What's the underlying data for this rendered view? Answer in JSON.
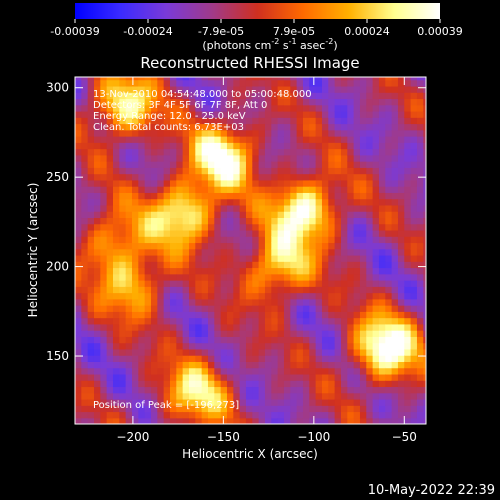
{
  "colorbar": {
    "tick_labels": [
      "-0.00039",
      "-0.00024",
      "-7.9e-05",
      "7.9e-05",
      "0.00024",
      "0.00039"
    ],
    "unit_label": "(photons cm",
    "unit_exp1": "-2",
    "unit_mid": " s",
    "unit_exp2": "-1",
    "unit_mid2": " asec",
    "unit_exp3": "-2",
    "unit_end": ")",
    "colors": [
      "#0000ff",
      "#3b2bff",
      "#7a3ad8",
      "#a03a8a",
      "#d03020",
      "#ff6a00",
      "#ffb000",
      "#ffff90",
      "#ffffff"
    ]
  },
  "chart_data": {
    "type": "heatmap",
    "title": "Reconstructed RHESSI Image",
    "xlabel": "Heliocentric X (arcsec)",
    "ylabel": "Heliocentric Y (arcsec)",
    "xlim": [
      -232,
      -38
    ],
    "ylim": [
      112,
      306
    ],
    "x_ticks": [
      -200,
      -150,
      -100,
      -50
    ],
    "y_ticks": [
      150,
      200,
      250,
      300
    ],
    "x_tick_labels": [
      "−200",
      "−150",
      "−100",
      "−50"
    ],
    "y_tick_labels": [
      "150",
      "200",
      "250",
      "300"
    ],
    "peak": [
      -196,
      273
    ],
    "annotations": [
      "13-Nov-2010 04:54:48.000 to 05:00:48.000",
      "Detectors: 3F 4F 5F 6F 7F 8F, Att 0",
      "Energy Range: 12.0 - 25.0 keV",
      "Clean. Total counts: 6.73E+03"
    ],
    "peak_label": "Position of Peak = [-196,273]",
    "bright_sources": [
      {
        "x": -150,
        "y": 262,
        "value": 0.9
      },
      {
        "x": -172,
        "y": 230,
        "value": 0.85
      },
      {
        "x": -105,
        "y": 232,
        "value": 0.95
      },
      {
        "x": -120,
        "y": 200,
        "value": 0.75
      },
      {
        "x": -60,
        "y": 155,
        "value": 1.0
      },
      {
        "x": -205,
        "y": 290,
        "value": 0.8
      },
      {
        "x": -200,
        "y": 190,
        "value": 0.6
      },
      {
        "x": -165,
        "y": 130,
        "value": 0.7
      },
      {
        "x": -210,
        "y": 215,
        "value": 0.55
      }
    ]
  },
  "timestamp": "10-May-2022 22:39"
}
